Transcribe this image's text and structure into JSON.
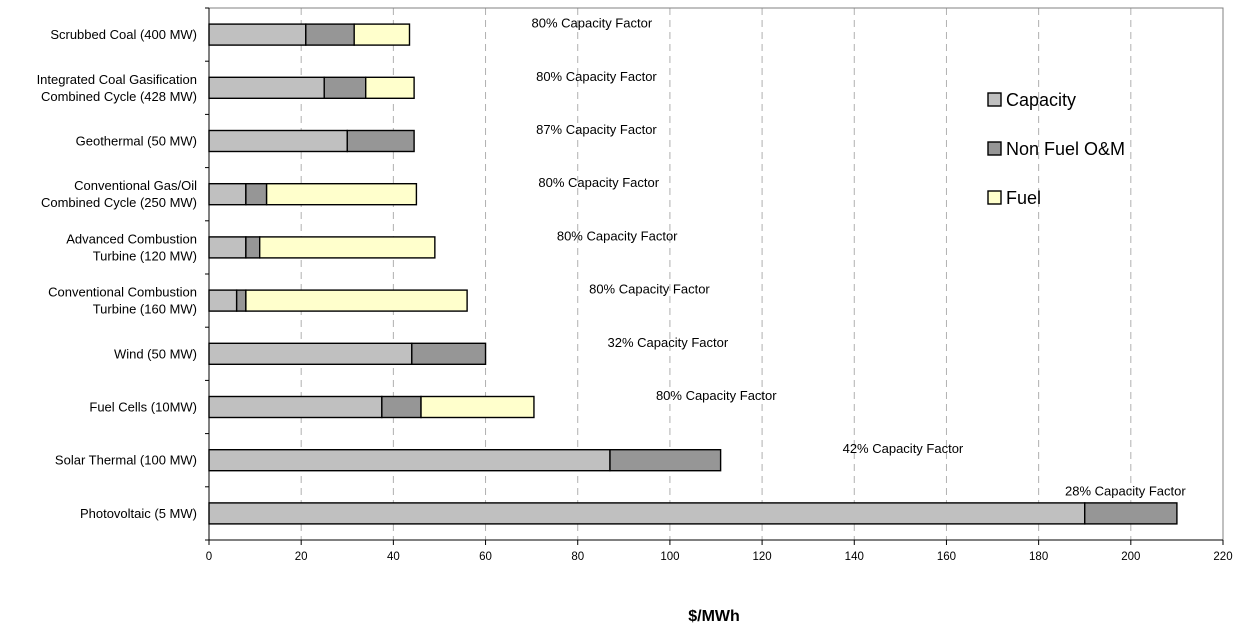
{
  "chart_data": {
    "type": "bar",
    "orientation": "horizontal",
    "stacked": true,
    "title": "",
    "xlabel": "$/MWh",
    "ylabel": "",
    "xlim": [
      0,
      220
    ],
    "xticks": [
      0,
      20,
      40,
      60,
      80,
      100,
      120,
      140,
      160,
      180,
      200,
      220
    ],
    "grid": "vertical dashed",
    "legend_position": "right",
    "categories": [
      [
        "Scrubbed Coal (400 MW)"
      ],
      [
        "Integrated Coal Gasification",
        "Combined Cycle (428 MW)"
      ],
      [
        "Geothermal (50 MW)"
      ],
      [
        "Conventional Gas/Oil",
        "Combined Cycle (250 MW)"
      ],
      [
        "Advanced Combustion",
        "Turbine (120 MW)"
      ],
      [
        "Conventional Combustion",
        "Turbine (160 MW)"
      ],
      [
        "Wind (50 MW)"
      ],
      [
        "Fuel Cells (10MW)"
      ],
      [
        "Solar Thermal (100 MW)"
      ],
      [
        "Photovoltaic (5 MW)"
      ]
    ],
    "series": [
      {
        "name": "Capacity",
        "color": "#c0c0c0",
        "values": [
          21,
          25,
          30,
          8,
          8,
          6,
          44,
          37.5,
          87,
          190
        ]
      },
      {
        "name": "Non Fuel O&M",
        "color": "#969696",
        "values": [
          10.5,
          9,
          14.5,
          4.5,
          3,
          2,
          16,
          8.5,
          24,
          20
        ]
      },
      {
        "name": "Fuel",
        "color": "#ffffcc",
        "values": [
          12,
          10.5,
          0,
          32.5,
          38,
          48,
          0,
          24.5,
          0,
          0
        ]
      }
    ],
    "annotations": [
      "80% Capacity Factor",
      "80% Capacity Factor",
      "87% Capacity Factor",
      "80% Capacity Factor",
      "80% Capacity Factor",
      "80% Capacity Factor",
      "32% Capacity Factor",
      "80% Capacity Factor",
      "42% Capacity Factor",
      "28% Capacity Factor"
    ]
  }
}
